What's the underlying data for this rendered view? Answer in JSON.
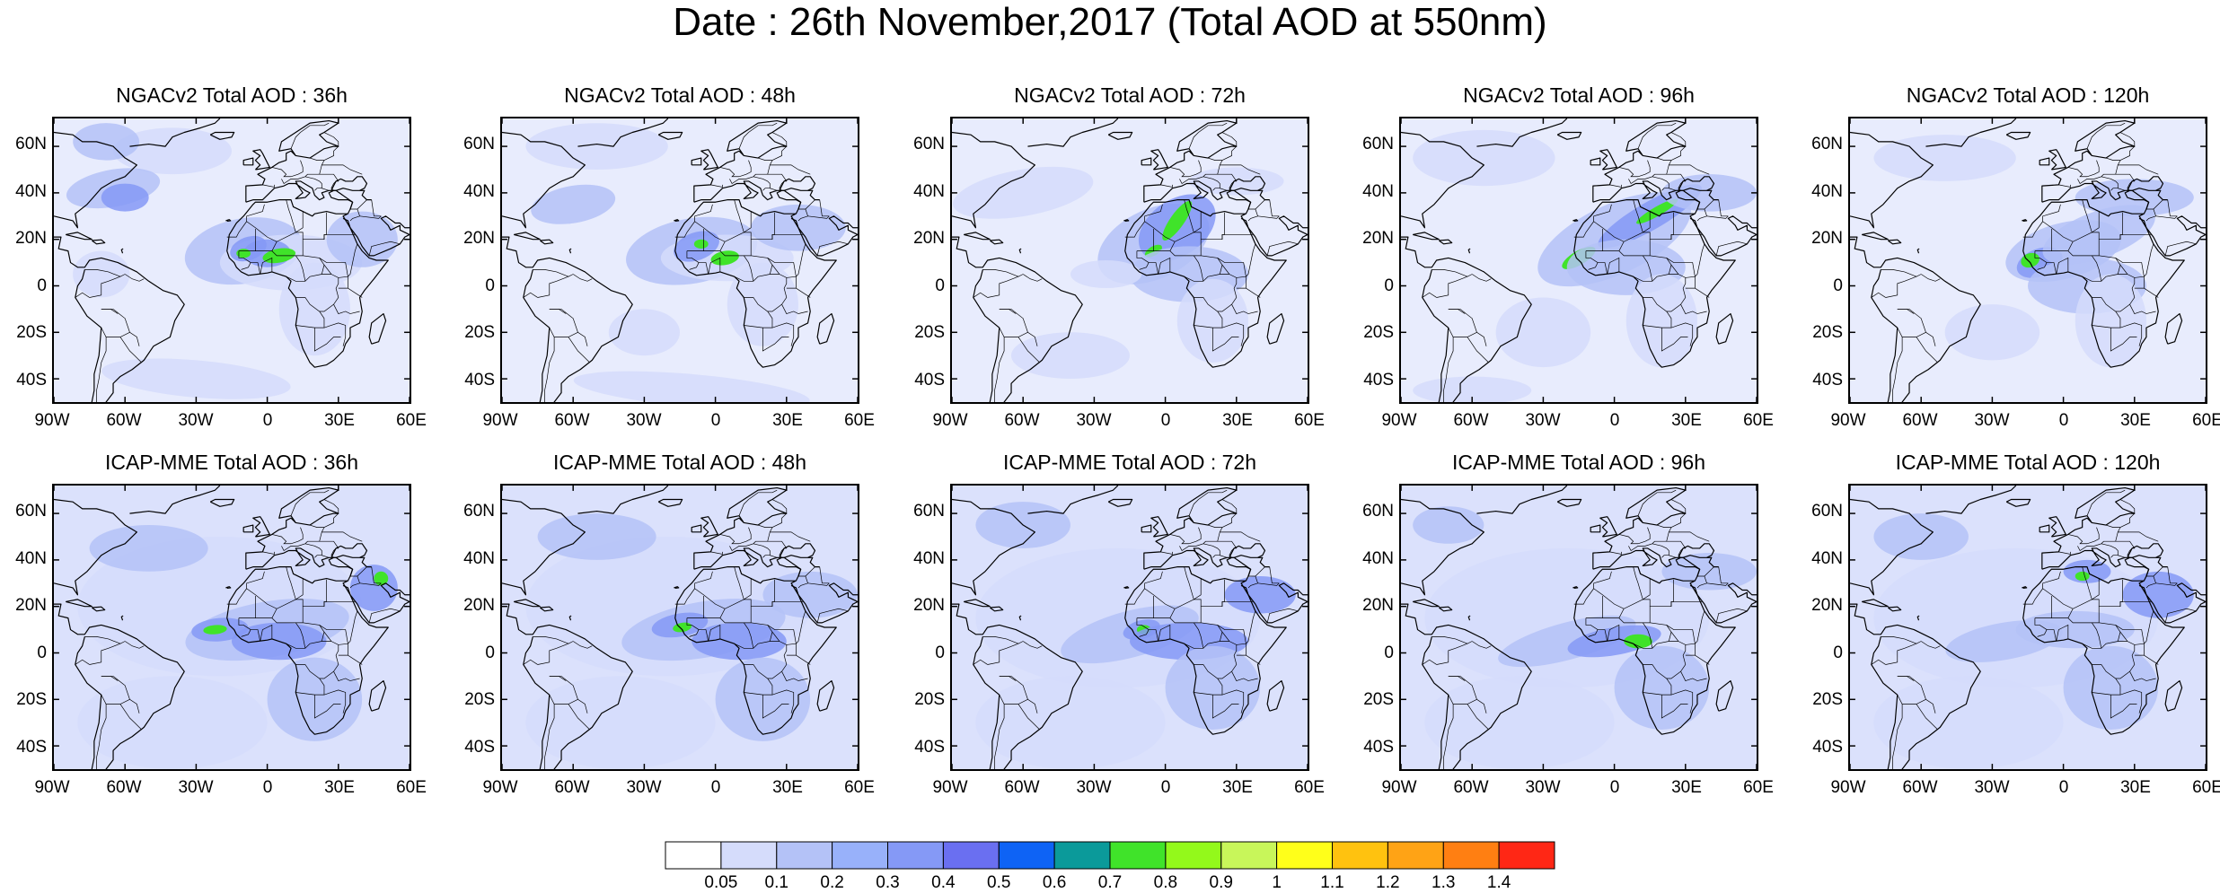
{
  "title": "Date : 26th November,2017 (Total AOD at 550nm)",
  "lat_labels": [
    "60N",
    "40N",
    "20N",
    "0",
    "20S",
    "40S"
  ],
  "lon_labels": [
    "90W",
    "60W",
    "30W",
    "0",
    "30E",
    "60E"
  ],
  "panels": [
    {
      "title": "NGACv2 Total AOD : 36h",
      "model": "NGACv2",
      "lead": "36h"
    },
    {
      "title": "NGACv2 Total AOD : 48h",
      "model": "NGACv2",
      "lead": "48h"
    },
    {
      "title": "NGACv2 Total AOD : 72h",
      "model": "NGACv2",
      "lead": "72h"
    },
    {
      "title": "NGACv2 Total AOD : 96h",
      "model": "NGACv2",
      "lead": "96h"
    },
    {
      "title": "NGACv2 Total AOD : 120h",
      "model": "NGACv2",
      "lead": "120h"
    },
    {
      "title": "ICAP-MME Total AOD : 36h",
      "model": "ICAP-MME",
      "lead": "36h"
    },
    {
      "title": "ICAP-MME Total AOD : 48h",
      "model": "ICAP-MME",
      "lead": "48h"
    },
    {
      "title": "ICAP-MME Total AOD : 72h",
      "model": "ICAP-MME",
      "lead": "72h"
    },
    {
      "title": "ICAP-MME Total AOD : 96h",
      "model": "ICAP-MME",
      "lead": "96h"
    },
    {
      "title": "ICAP-MME Total AOD : 120h",
      "model": "ICAP-MME",
      "lead": "120h"
    }
  ],
  "colorbar": {
    "labels": [
      "0.05",
      "0.1",
      "0.2",
      "0.3",
      "0.4",
      "0.5",
      "0.6",
      "0.7",
      "0.8",
      "0.9",
      "1",
      "1.1",
      "1.2",
      "1.3",
      "1.4"
    ],
    "colors": [
      "#ffffff",
      "#d5dcfb",
      "#b4c2f7",
      "#98b1fa",
      "#8599f6",
      "#6a6ff1",
      "#0e63f5",
      "#0b9a9a",
      "#40e32a",
      "#93f91b",
      "#c8f65a",
      "#ffff1a",
      "#ffc20f",
      "#ffa315",
      "#ff7f12",
      "#ff2715"
    ]
  },
  "map_palette": {
    "ocean_background": "#ffffff",
    "coastline": "#000000",
    "aod_low": "#d5dcfb",
    "aod_mid": "#b4c2f7",
    "aod_high": "#8599f6",
    "dust_core": "#40e32a"
  }
}
